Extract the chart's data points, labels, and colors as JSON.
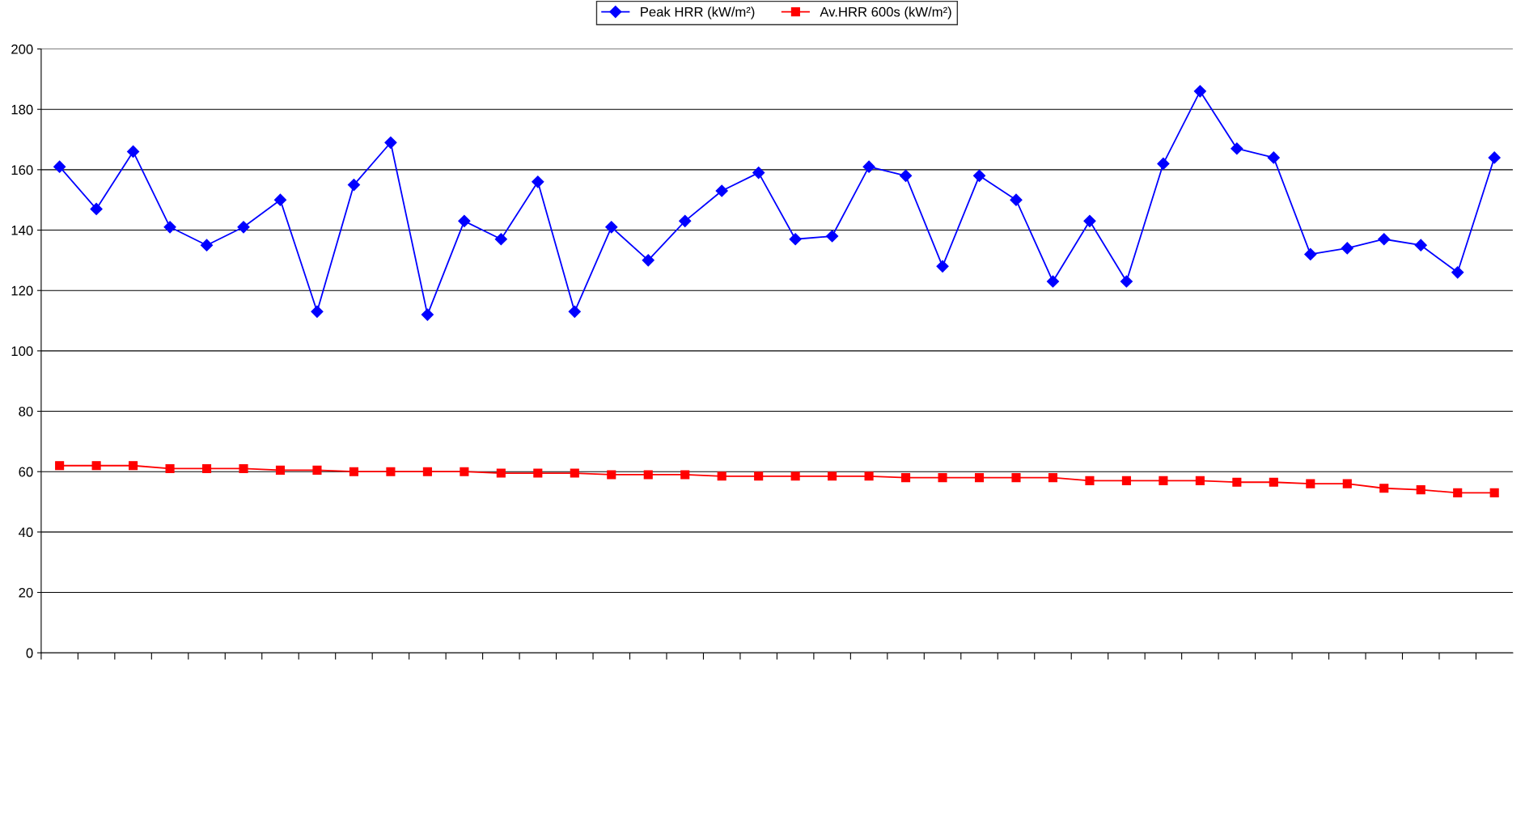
{
  "chart_data": {
    "type": "line",
    "categories": [
      null,
      null,
      null,
      null,
      null,
      null,
      null,
      null,
      null,
      null,
      null,
      null,
      null,
      null,
      null,
      null,
      null,
      null,
      null,
      null,
      null,
      null,
      null,
      null,
      null,
      null,
      null,
      null,
      null,
      null,
      null,
      null,
      null,
      null,
      null,
      null,
      null,
      null,
      null,
      null
    ],
    "series": [
      {
        "name": "Peak HRR (kW/m²)",
        "color": "#0000ff",
        "marker": "diamond",
        "values": [
          161,
          147,
          166,
          141,
          135,
          141,
          150,
          113,
          155,
          169,
          112,
          143,
          137,
          156,
          113,
          141,
          130,
          143,
          153,
          159,
          137,
          138,
          161,
          158,
          128,
          158,
          150,
          123,
          143,
          123,
          162,
          186,
          167,
          164,
          132,
          134,
          137,
          135,
          126,
          164
        ]
      },
      {
        "name": "Av.HRR 600s (kW/m²)",
        "color": "#ff0000",
        "marker": "square",
        "values": [
          62,
          62,
          62,
          61,
          61,
          61,
          60.5,
          60.5,
          60,
          60,
          60,
          60,
          59.5,
          59.5,
          59.5,
          59,
          59,
          59,
          58.5,
          58.5,
          58.5,
          58.5,
          58.5,
          58,
          58,
          58,
          58,
          58,
          57,
          57,
          57,
          57,
          56.5,
          56.5,
          56,
          56,
          54.5,
          54,
          53,
          53
        ]
      }
    ],
    "ylim": [
      0,
      200
    ],
    "yticks": [
      0,
      20,
      40,
      60,
      80,
      100,
      120,
      140,
      160,
      180,
      200
    ],
    "grid": "y",
    "legend": "top"
  }
}
